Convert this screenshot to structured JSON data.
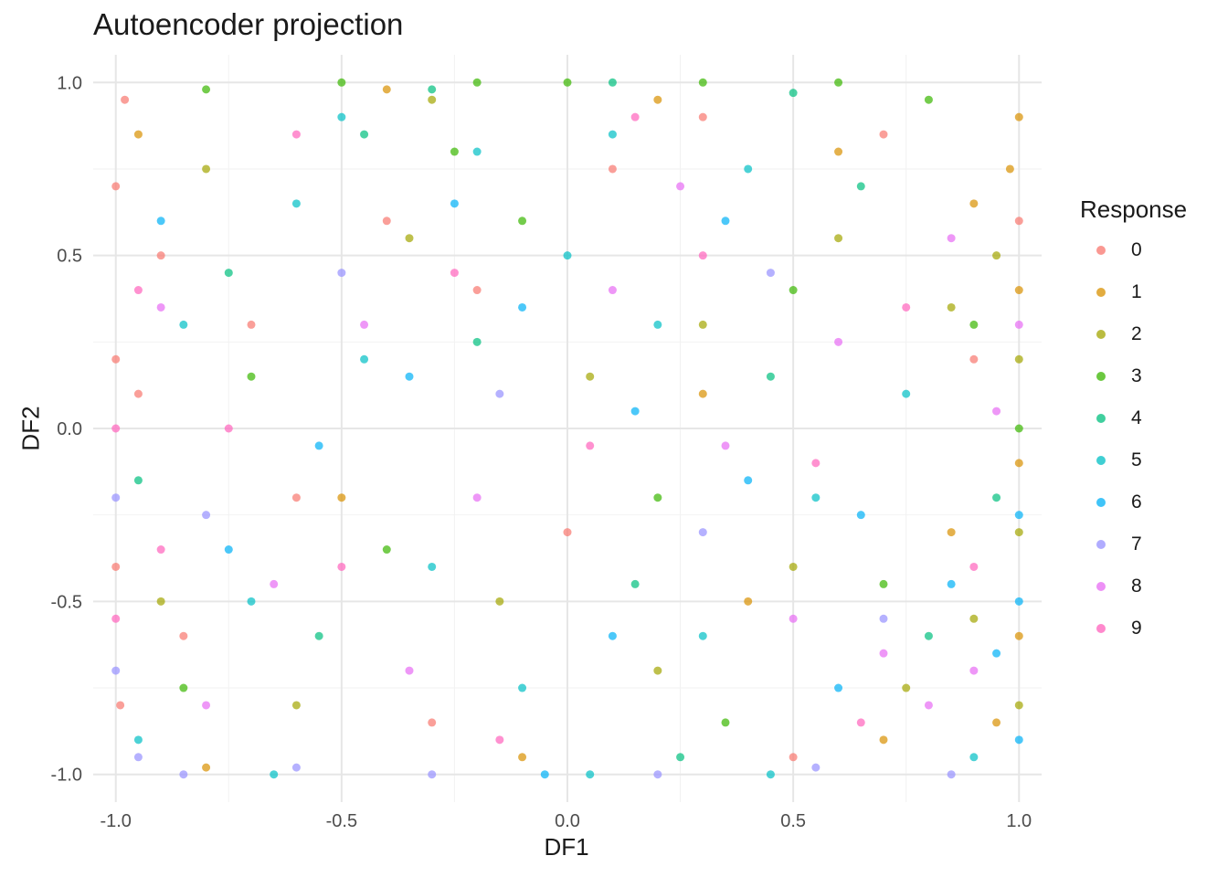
{
  "chart_data": {
    "type": "scatter",
    "title": "Autoencoder projection",
    "xlabel": "DF1",
    "ylabel": "DF2",
    "xlim": [
      -1.05,
      1.05
    ],
    "ylim": [
      -1.08,
      1.08
    ],
    "x_ticks": [
      -1.0,
      -0.5,
      0.0,
      0.5,
      1.0
    ],
    "x_tick_labels": [
      "-1.0",
      "-0.5",
      "0.0",
      "0.5",
      "1.0"
    ],
    "y_ticks": [
      -1.0,
      -0.5,
      0.0,
      0.5,
      1.0
    ],
    "y_tick_labels": [
      "-1.0",
      "-0.5",
      "0.0",
      "0.5",
      "1.0"
    ],
    "grid": true,
    "legend": {
      "title": "Response",
      "position": "right",
      "entries": [
        "0",
        "1",
        "2",
        "3",
        "4",
        "5",
        "6",
        "7",
        "8",
        "9"
      ]
    },
    "colors": [
      "#F8766D",
      "#D89000",
      "#A3A500",
      "#39B600",
      "#00BF7D",
      "#00BFC4",
      "#00B0F6",
      "#9590FF",
      "#E76BF3",
      "#FF62BC"
    ],
    "point_opacity": 0.7,
    "series": [
      {
        "name": "0",
        "points": [
          [
            -1.0,
            0.7
          ],
          [
            -1.0,
            0.2
          ],
          [
            -1.0,
            -0.4
          ],
          [
            -0.98,
            0.95
          ],
          [
            -0.99,
            -0.8
          ],
          [
            -0.95,
            0.1
          ],
          [
            -0.9,
            0.5
          ],
          [
            -0.85,
            -0.6
          ],
          [
            -0.7,
            0.3
          ],
          [
            -0.6,
            -0.2
          ],
          [
            -0.4,
            0.6
          ],
          [
            -0.3,
            -0.85
          ],
          [
            -0.2,
            0.4
          ],
          [
            0.0,
            -0.3
          ],
          [
            0.1,
            0.75
          ],
          [
            0.3,
            0.9
          ],
          [
            0.5,
            -0.95
          ],
          [
            0.7,
            0.85
          ],
          [
            0.9,
            0.2
          ],
          [
            1.0,
            0.6
          ]
        ]
      },
      {
        "name": "1",
        "points": [
          [
            1.0,
            0.9
          ],
          [
            1.0,
            0.4
          ],
          [
            1.0,
            -0.1
          ],
          [
            1.0,
            -0.6
          ],
          [
            0.98,
            0.75
          ],
          [
            0.95,
            -0.85
          ],
          [
            0.9,
            0.65
          ],
          [
            0.85,
            -0.3
          ],
          [
            0.7,
            -0.9
          ],
          [
            0.6,
            0.8
          ],
          [
            0.4,
            -0.5
          ],
          [
            0.2,
            0.95
          ],
          [
            -0.1,
            -0.95
          ],
          [
            -0.4,
            0.98
          ],
          [
            -0.8,
            -0.98
          ],
          [
            -0.95,
            0.85
          ],
          [
            0.3,
            0.1
          ],
          [
            -0.5,
            -0.2
          ]
        ]
      },
      {
        "name": "2",
        "points": [
          [
            1.0,
            0.2
          ],
          [
            1.0,
            -0.3
          ],
          [
            1.0,
            -0.8
          ],
          [
            0.95,
            0.5
          ],
          [
            0.9,
            -0.55
          ],
          [
            0.85,
            0.35
          ],
          [
            0.75,
            -0.75
          ],
          [
            0.6,
            0.55
          ],
          [
            0.5,
            -0.4
          ],
          [
            0.3,
            0.3
          ],
          [
            0.2,
            -0.7
          ],
          [
            0.05,
            0.15
          ],
          [
            -0.15,
            -0.5
          ],
          [
            -0.35,
            0.55
          ],
          [
            -0.6,
            -0.8
          ],
          [
            -0.8,
            0.75
          ],
          [
            -0.9,
            -0.5
          ],
          [
            -0.3,
            0.95
          ]
        ]
      },
      {
        "name": "3",
        "points": [
          [
            0.0,
            1.0
          ],
          [
            -0.2,
            1.0
          ],
          [
            -0.5,
            1.0
          ],
          [
            0.3,
            1.0
          ],
          [
            0.6,
            1.0
          ],
          [
            -0.8,
            0.98
          ],
          [
            0.8,
            0.95
          ],
          [
            0.9,
            0.3
          ],
          [
            0.5,
            0.4
          ],
          [
            0.2,
            -0.2
          ],
          [
            -0.1,
            0.6
          ],
          [
            -0.4,
            -0.35
          ],
          [
            -0.7,
            0.15
          ],
          [
            -0.85,
            -0.75
          ],
          [
            0.35,
            -0.85
          ],
          [
            0.7,
            -0.45
          ],
          [
            -0.25,
            0.8
          ],
          [
            1.0,
            0.0
          ]
        ]
      },
      {
        "name": "4",
        "points": [
          [
            0.1,
            1.0
          ],
          [
            -0.3,
            0.98
          ],
          [
            0.5,
            0.97
          ],
          [
            0.95,
            -0.2
          ],
          [
            0.8,
            -0.6
          ],
          [
            0.45,
            0.15
          ],
          [
            0.15,
            -0.45
          ],
          [
            -0.2,
            0.25
          ],
          [
            -0.55,
            -0.6
          ],
          [
            -0.75,
            0.45
          ],
          [
            -0.95,
            -0.15
          ],
          [
            0.65,
            0.7
          ],
          [
            -0.45,
            0.85
          ],
          [
            0.25,
            -0.95
          ]
        ]
      },
      {
        "name": "5",
        "points": [
          [
            -0.5,
            0.9
          ],
          [
            -0.2,
            0.8
          ],
          [
            0.1,
            0.85
          ],
          [
            0.4,
            0.75
          ],
          [
            -0.7,
            -0.5
          ],
          [
            -0.3,
            -0.4
          ],
          [
            0.0,
            0.5
          ],
          [
            0.2,
            0.3
          ],
          [
            -0.45,
            0.2
          ],
          [
            -0.6,
            0.65
          ],
          [
            0.55,
            -0.2
          ],
          [
            0.3,
            -0.6
          ],
          [
            -0.1,
            -0.75
          ],
          [
            0.75,
            0.1
          ],
          [
            -0.85,
            0.3
          ],
          [
            -0.95,
            -0.9
          ],
          [
            0.9,
            -0.95
          ],
          [
            -0.65,
            -1.0
          ],
          [
            0.05,
            -1.0
          ],
          [
            0.45,
            -1.0
          ]
        ]
      },
      {
        "name": "6",
        "points": [
          [
            1.0,
            -0.5
          ],
          [
            1.0,
            -0.25
          ],
          [
            1.0,
            -0.9
          ],
          [
            0.95,
            -0.65
          ],
          [
            0.85,
            -0.45
          ],
          [
            0.65,
            -0.25
          ],
          [
            0.4,
            -0.15
          ],
          [
            0.15,
            0.05
          ],
          [
            -0.1,
            0.35
          ],
          [
            -0.35,
            0.15
          ],
          [
            -0.55,
            -0.05
          ],
          [
            -0.75,
            -0.35
          ],
          [
            -0.25,
            0.65
          ],
          [
            0.1,
            -0.6
          ],
          [
            0.35,
            0.6
          ],
          [
            -0.9,
            0.6
          ],
          [
            0.6,
            -0.75
          ],
          [
            -0.05,
            -1.0
          ]
        ]
      },
      {
        "name": "7",
        "points": [
          [
            -1.0,
            -0.2
          ],
          [
            -1.0,
            -0.7
          ],
          [
            -0.95,
            -0.95
          ],
          [
            -0.85,
            -1.0
          ],
          [
            -0.6,
            -0.98
          ],
          [
            -0.3,
            -1.0
          ],
          [
            0.2,
            -1.0
          ],
          [
            0.55,
            -0.98
          ],
          [
            0.85,
            -1.0
          ],
          [
            0.7,
            -0.55
          ],
          [
            0.3,
            -0.3
          ],
          [
            -0.15,
            0.1
          ],
          [
            -0.5,
            0.45
          ],
          [
            0.45,
            0.45
          ],
          [
            -0.8,
            -0.25
          ]
        ]
      },
      {
        "name": "8",
        "points": [
          [
            0.9,
            -0.7
          ],
          [
            0.8,
            -0.8
          ],
          [
            0.7,
            -0.65
          ],
          [
            0.95,
            0.05
          ],
          [
            0.85,
            0.55
          ],
          [
            0.6,
            0.25
          ],
          [
            0.35,
            -0.05
          ],
          [
            0.1,
            0.4
          ],
          [
            -0.2,
            -0.2
          ],
          [
            -0.45,
            0.3
          ],
          [
            -0.65,
            -0.45
          ],
          [
            -0.9,
            0.35
          ],
          [
            0.5,
            -0.55
          ],
          [
            -0.35,
            -0.7
          ],
          [
            0.25,
            0.7
          ],
          [
            1.0,
            0.3
          ],
          [
            -0.8,
            -0.8
          ]
        ]
      },
      {
        "name": "9",
        "points": [
          [
            -1.0,
            0.0
          ],
          [
            -1.0,
            -0.55
          ],
          [
            -0.95,
            0.4
          ],
          [
            -0.9,
            -0.35
          ],
          [
            -0.75,
            0.0
          ],
          [
            -0.5,
            -0.4
          ],
          [
            -0.25,
            0.45
          ],
          [
            0.05,
            -0.05
          ],
          [
            0.3,
            0.5
          ],
          [
            0.55,
            -0.1
          ],
          [
            0.75,
            0.35
          ],
          [
            0.9,
            -0.4
          ],
          [
            0.65,
            -0.85
          ],
          [
            -0.15,
            -0.9
          ],
          [
            -0.6,
            0.85
          ],
          [
            0.15,
            0.9
          ]
        ]
      }
    ]
  }
}
